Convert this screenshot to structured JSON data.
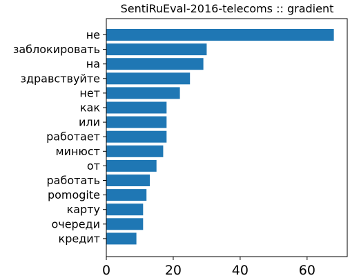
{
  "chart_data": {
    "type": "bar",
    "orientation": "horizontal",
    "title": "SentiRuEval-2016-telecoms :: gradient",
    "xlabel": "",
    "ylabel": "",
    "categories": [
      "не",
      "заблокировать",
      "на",
      "здравствуйте",
      "нет",
      "как",
      "или",
      "работает",
      "минюст",
      "от",
      "работать",
      "pomogite",
      "карту",
      "очереди",
      "кредит"
    ],
    "values": [
      68,
      30,
      29,
      25,
      22,
      18,
      18,
      18,
      17,
      15,
      13,
      12,
      11,
      11,
      9
    ],
    "xlim": [
      0,
      72
    ],
    "xticks": [
      "0",
      "20",
      "40",
      "60"
    ],
    "grid": false,
    "bar_color": "#1f77b4"
  }
}
